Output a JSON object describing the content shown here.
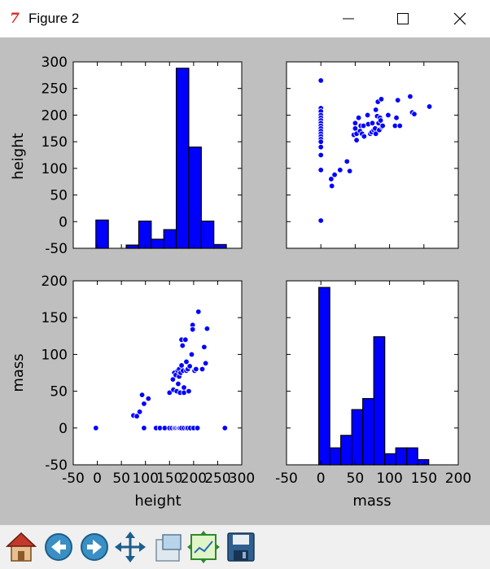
{
  "window": {
    "title": "Figure 2",
    "icon": "tk-feather-icon",
    "controls": [
      "minimize-icon",
      "maximize-icon",
      "close-icon"
    ]
  },
  "toolbar": {
    "buttons": [
      {
        "name": "home-button",
        "icon": "home-icon"
      },
      {
        "name": "back-button",
        "icon": "back-arrow-icon"
      },
      {
        "name": "forward-button",
        "icon": "forward-arrow-icon"
      },
      {
        "name": "pan-button",
        "icon": "pan-icon"
      },
      {
        "name": "zoom-button",
        "icon": "zoom-icon"
      },
      {
        "name": "configure-subplots-button",
        "icon": "subplots-icon"
      },
      {
        "name": "save-button",
        "icon": "save-icon"
      }
    ]
  },
  "colors": {
    "figure_bg": "#bfbfbf",
    "axes_bg": "#ffffff",
    "marker": "#0000ff",
    "bar_fill": "#0000ff",
    "bar_edge": "#000000"
  },
  "chart_data": [
    {
      "type": "bar",
      "title": "",
      "xlabel": "",
      "ylabel": "height",
      "ylim": [
        -50,
        300
      ],
      "yticks": [
        -50,
        0,
        50,
        100,
        150,
        200,
        250,
        300
      ],
      "bins": [
        {
          "x0": -3,
          "x1": 23,
          "value": 3
        },
        {
          "x0": 60,
          "x1": 86,
          "value": -44
        },
        {
          "x0": 86,
          "x1": 112,
          "value": 1
        },
        {
          "x0": 112,
          "x1": 138,
          "value": -33
        },
        {
          "x0": 138,
          "x1": 164,
          "value": -15
        },
        {
          "x0": 164,
          "x1": 190,
          "value": 288
        },
        {
          "x0": 190,
          "x1": 216,
          "value": 140
        },
        {
          "x0": 216,
          "x1": 242,
          "value": 1
        },
        {
          "x0": 242,
          "x1": 268,
          "value": -43
        }
      ],
      "baseline": -50,
      "grid": false
    },
    {
      "type": "scatter",
      "title": "",
      "xlabel": "",
      "ylabel": "",
      "xlim": [
        -50,
        200
      ],
      "ylim": [
        -50,
        300
      ],
      "grid": false,
      "points": [
        [
          0,
          265
        ],
        [
          0,
          213
        ],
        [
          0,
          207
        ],
        [
          0,
          200
        ],
        [
          0,
          195
        ],
        [
          0,
          190
        ],
        [
          0,
          185
        ],
        [
          0,
          180
        ],
        [
          0,
          175
        ],
        [
          0,
          170
        ],
        [
          0,
          165
        ],
        [
          0,
          160
        ],
        [
          0,
          155
        ],
        [
          0,
          150
        ],
        [
          0,
          140
        ],
        [
          0,
          125
        ],
        [
          0,
          97
        ],
        [
          0,
          2
        ],
        [
          15,
          80
        ],
        [
          16,
          67
        ],
        [
          20,
          88
        ],
        [
          28,
          97
        ],
        [
          38,
          113
        ],
        [
          42,
          95
        ],
        [
          48,
          163
        ],
        [
          50,
          185
        ],
        [
          50,
          175
        ],
        [
          52,
          165
        ],
        [
          52,
          153
        ],
        [
          55,
          195
        ],
        [
          57,
          170
        ],
        [
          58,
          180
        ],
        [
          60,
          165
        ],
        [
          62,
          180
        ],
        [
          63,
          160
        ],
        [
          68,
          200
        ],
        [
          69,
          183
        ],
        [
          72,
          165
        ],
        [
          74,
          168
        ],
        [
          75,
          185
        ],
        [
          77,
          172
        ],
        [
          79,
          175
        ],
        [
          80,
          165
        ],
        [
          80,
          210
        ],
        [
          82,
          198
        ],
        [
          83,
          225
        ],
        [
          84,
          185
        ],
        [
          85,
          172
        ],
        [
          86,
          195
        ],
        [
          87,
          190
        ],
        [
          88,
          230
        ],
        [
          89,
          178
        ],
        [
          90,
          180
        ],
        [
          98,
          200
        ],
        [
          108,
          180
        ],
        [
          110,
          195
        ],
        [
          112,
          228
        ],
        [
          115,
          180
        ],
        [
          130,
          235
        ],
        [
          133,
          205
        ],
        [
          136,
          202
        ],
        [
          158,
          216
        ]
      ]
    },
    {
      "type": "scatter",
      "title": "",
      "xlabel": "height",
      "ylabel": "mass",
      "xlim": [
        -50,
        300
      ],
      "ylim": [
        -50,
        200
      ],
      "yticks": [
        -50,
        0,
        50,
        100,
        150,
        200
      ],
      "xticks": [
        -50,
        0,
        50,
        100,
        150,
        200,
        250,
        300
      ],
      "grid": false,
      "points": [
        [
          -3,
          0
        ],
        [
          75,
          17
        ],
        [
          82,
          16
        ],
        [
          88,
          22
        ],
        [
          93,
          45
        ],
        [
          97,
          33
        ],
        [
          97,
          0
        ],
        [
          106,
          40
        ],
        [
          122,
          0
        ],
        [
          130,
          0
        ],
        [
          140,
          0
        ],
        [
          150,
          0
        ],
        [
          155,
          0
        ],
        [
          160,
          0
        ],
        [
          162,
          0
        ],
        [
          165,
          0
        ],
        [
          168,
          0
        ],
        [
          170,
          0
        ],
        [
          172,
          0
        ],
        [
          175,
          0
        ],
        [
          180,
          0
        ],
        [
          185,
          0
        ],
        [
          188,
          0
        ],
        [
          193,
          0
        ],
        [
          200,
          0
        ],
        [
          208,
          0
        ],
        [
          265,
          0
        ],
        [
          150,
          48
        ],
        [
          157,
          66
        ],
        [
          158,
          52
        ],
        [
          160,
          75
        ],
        [
          163,
          72
        ],
        [
          165,
          50
        ],
        [
          167,
          78
        ],
        [
          168,
          60
        ],
        [
          170,
          80
        ],
        [
          170,
          70
        ],
        [
          172,
          48
        ],
        [
          173,
          75
        ],
        [
          175,
          85
        ],
        [
          175,
          120
        ],
        [
          177,
          112
        ],
        [
          178,
          78
        ],
        [
          180,
          55
        ],
        [
          180,
          48
        ],
        [
          183,
          120
        ],
        [
          185,
          78
        ],
        [
          185,
          90
        ],
        [
          188,
          80
        ],
        [
          190,
          50
        ],
        [
          192,
          84
        ],
        [
          196,
          100
        ],
        [
          198,
          140
        ],
        [
          198,
          134
        ],
        [
          202,
          78
        ],
        [
          205,
          80
        ],
        [
          210,
          158
        ],
        [
          218,
          80
        ],
        [
          222,
          110
        ],
        [
          225,
          88
        ],
        [
          228,
          135
        ]
      ]
    },
    {
      "type": "bar",
      "title": "",
      "xlabel": "mass",
      "ylabel": "",
      "xlim": [
        -50,
        200
      ],
      "ylim": [
        -50,
        200
      ],
      "xticks": [
        -50,
        0,
        50,
        100,
        150,
        200
      ],
      "bins": [
        {
          "x0": -3,
          "x1": 13,
          "value": 191
        },
        {
          "x0": 13,
          "x1": 29,
          "value": -27
        },
        {
          "x0": 29,
          "x1": 45,
          "value": -10
        },
        {
          "x0": 45,
          "x1": 61,
          "value": 25
        },
        {
          "x0": 61,
          "x1": 77,
          "value": 40
        },
        {
          "x0": 77,
          "x1": 93,
          "value": 124
        },
        {
          "x0": 93,
          "x1": 109,
          "value": -35
        },
        {
          "x0": 109,
          "x1": 125,
          "value": -27
        },
        {
          "x0": 125,
          "x1": 141,
          "value": -27
        },
        {
          "x0": 141,
          "x1": 157,
          "value": -43
        }
      ],
      "baseline": -50,
      "grid": false
    }
  ]
}
